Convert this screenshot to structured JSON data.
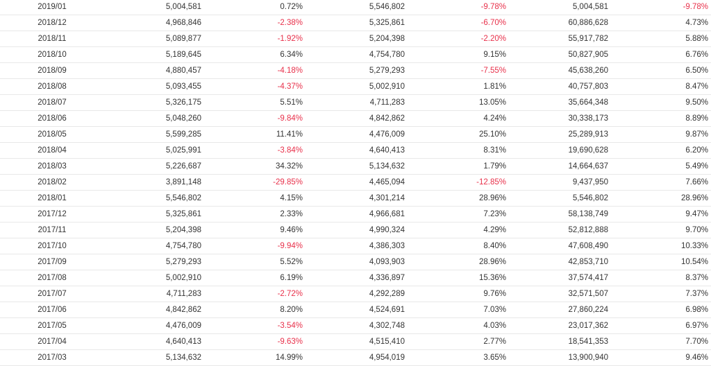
{
  "table": {
    "rows": [
      [
        "2019/01",
        "5,004,581",
        "0.72%",
        "5,546,802",
        "-9.78%",
        "5,004,581",
        "-9.78%"
      ],
      [
        "2018/12",
        "4,968,846",
        "-2.38%",
        "5,325,861",
        "-6.70%",
        "60,886,628",
        "4.73%"
      ],
      [
        "2018/11",
        "5,089,877",
        "-1.92%",
        "5,204,398",
        "-2.20%",
        "55,917,782",
        "5.88%"
      ],
      [
        "2018/10",
        "5,189,645",
        "6.34%",
        "4,754,780",
        "9.15%",
        "50,827,905",
        "6.76%"
      ],
      [
        "2018/09",
        "4,880,457",
        "-4.18%",
        "5,279,293",
        "-7.55%",
        "45,638,260",
        "6.50%"
      ],
      [
        "2018/08",
        "5,093,455",
        "-4.37%",
        "5,002,910",
        "1.81%",
        "40,757,803",
        "8.47%"
      ],
      [
        "2018/07",
        "5,326,175",
        "5.51%",
        "4,711,283",
        "13.05%",
        "35,664,348",
        "9.50%"
      ],
      [
        "2018/06",
        "5,048,260",
        "-9.84%",
        "4,842,862",
        "4.24%",
        "30,338,173",
        "8.89%"
      ],
      [
        "2018/05",
        "5,599,285",
        "11.41%",
        "4,476,009",
        "25.10%",
        "25,289,913",
        "9.87%"
      ],
      [
        "2018/04",
        "5,025,991",
        "-3.84%",
        "4,640,413",
        "8.31%",
        "19,690,628",
        "6.20%"
      ],
      [
        "2018/03",
        "5,226,687",
        "34.32%",
        "5,134,632",
        "1.79%",
        "14,664,637",
        "5.49%"
      ],
      [
        "2018/02",
        "3,891,148",
        "-29.85%",
        "4,465,094",
        "-12.85%",
        "9,437,950",
        "7.66%"
      ],
      [
        "2018/01",
        "5,546,802",
        "4.15%",
        "4,301,214",
        "28.96%",
        "5,546,802",
        "28.96%"
      ],
      [
        "2017/12",
        "5,325,861",
        "2.33%",
        "4,966,681",
        "7.23%",
        "58,138,749",
        "9.47%"
      ],
      [
        "2017/11",
        "5,204,398",
        "9.46%",
        "4,990,324",
        "4.29%",
        "52,812,888",
        "9.70%"
      ],
      [
        "2017/10",
        "4,754,780",
        "-9.94%",
        "4,386,303",
        "8.40%",
        "47,608,490",
        "10.33%"
      ],
      [
        "2017/09",
        "5,279,293",
        "5.52%",
        "4,093,903",
        "28.96%",
        "42,853,710",
        "10.54%"
      ],
      [
        "2017/08",
        "5,002,910",
        "6.19%",
        "4,336,897",
        "15.36%",
        "37,574,417",
        "8.37%"
      ],
      [
        "2017/07",
        "4,711,283",
        "-2.72%",
        "4,292,289",
        "9.76%",
        "32,571,507",
        "7.37%"
      ],
      [
        "2017/06",
        "4,842,862",
        "8.20%",
        "4,524,691",
        "7.03%",
        "27,860,224",
        "6.98%"
      ],
      [
        "2017/05",
        "4,476,009",
        "-3.54%",
        "4,302,748",
        "4.03%",
        "23,017,362",
        "6.97%"
      ],
      [
        "2017/04",
        "4,640,413",
        "-9.63%",
        "4,515,410",
        "2.77%",
        "18,541,353",
        "7.70%"
      ],
      [
        "2017/03",
        "5,134,632",
        "14.99%",
        "4,954,019",
        "3.65%",
        "13,900,940",
        "9.46%"
      ]
    ]
  },
  "colors": {
    "negative": "#e8304a",
    "text": "#333333",
    "row_border": "#e8e8e8"
  }
}
